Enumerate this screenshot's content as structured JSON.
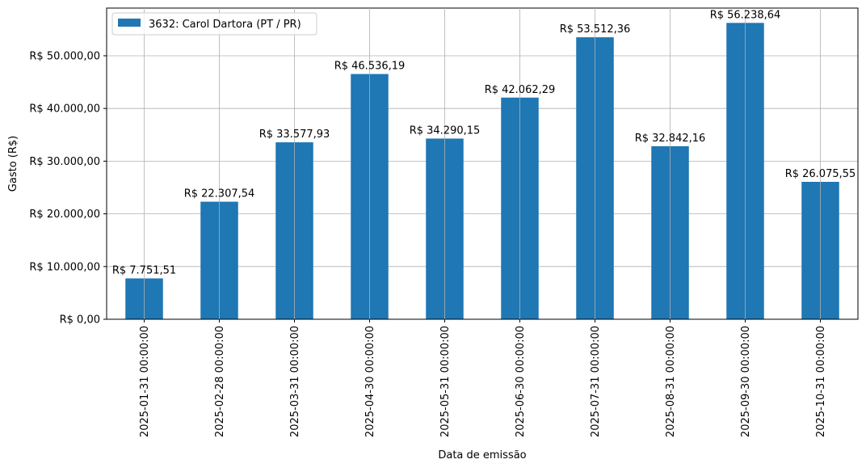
{
  "chart_data": {
    "type": "bar",
    "categories": [
      "2025-01-31 00:00:00",
      "2025-02-28 00:00:00",
      "2025-03-31 00:00:00",
      "2025-04-30 00:00:00",
      "2025-05-31 00:00:00",
      "2025-06-30 00:00:00",
      "2025-07-31 00:00:00",
      "2025-08-31 00:00:00",
      "2025-09-30 00:00:00",
      "2025-10-31 00:00:00"
    ],
    "series": [
      {
        "name": "3632: Carol Dartora (PT / PR)",
        "values": [
          7751.51,
          22307.54,
          33577.93,
          46536.19,
          34290.15,
          42062.29,
          53512.36,
          32842.16,
          56238.64,
          26075.55
        ],
        "data_labels": [
          "R$ 7.751,51",
          "R$ 22.307,54",
          "R$ 33.577,93",
          "R$ 46.536,19",
          "R$ 34.290,15",
          "R$ 42.062,29",
          "R$ 53.512,36",
          "R$ 32.842,16",
          "R$ 56.238,64",
          "R$ 26.075,55"
        ],
        "color": "#1f77b4"
      }
    ],
    "title": "",
    "xlabel": "Data de emissão",
    "ylabel": "Gasto (R$)",
    "ylim": [
      0,
      59050
    ],
    "yticks": [
      0,
      10000,
      20000,
      30000,
      40000,
      50000
    ],
    "ytick_labels": [
      "R$ 0,00",
      "R$ 10.000,00",
      "R$ 20.000,00",
      "R$ 30.000,00",
      "R$ 40.000,00",
      "R$ 50.000,00"
    ],
    "grid": true,
    "legend_position": "top-left"
  }
}
